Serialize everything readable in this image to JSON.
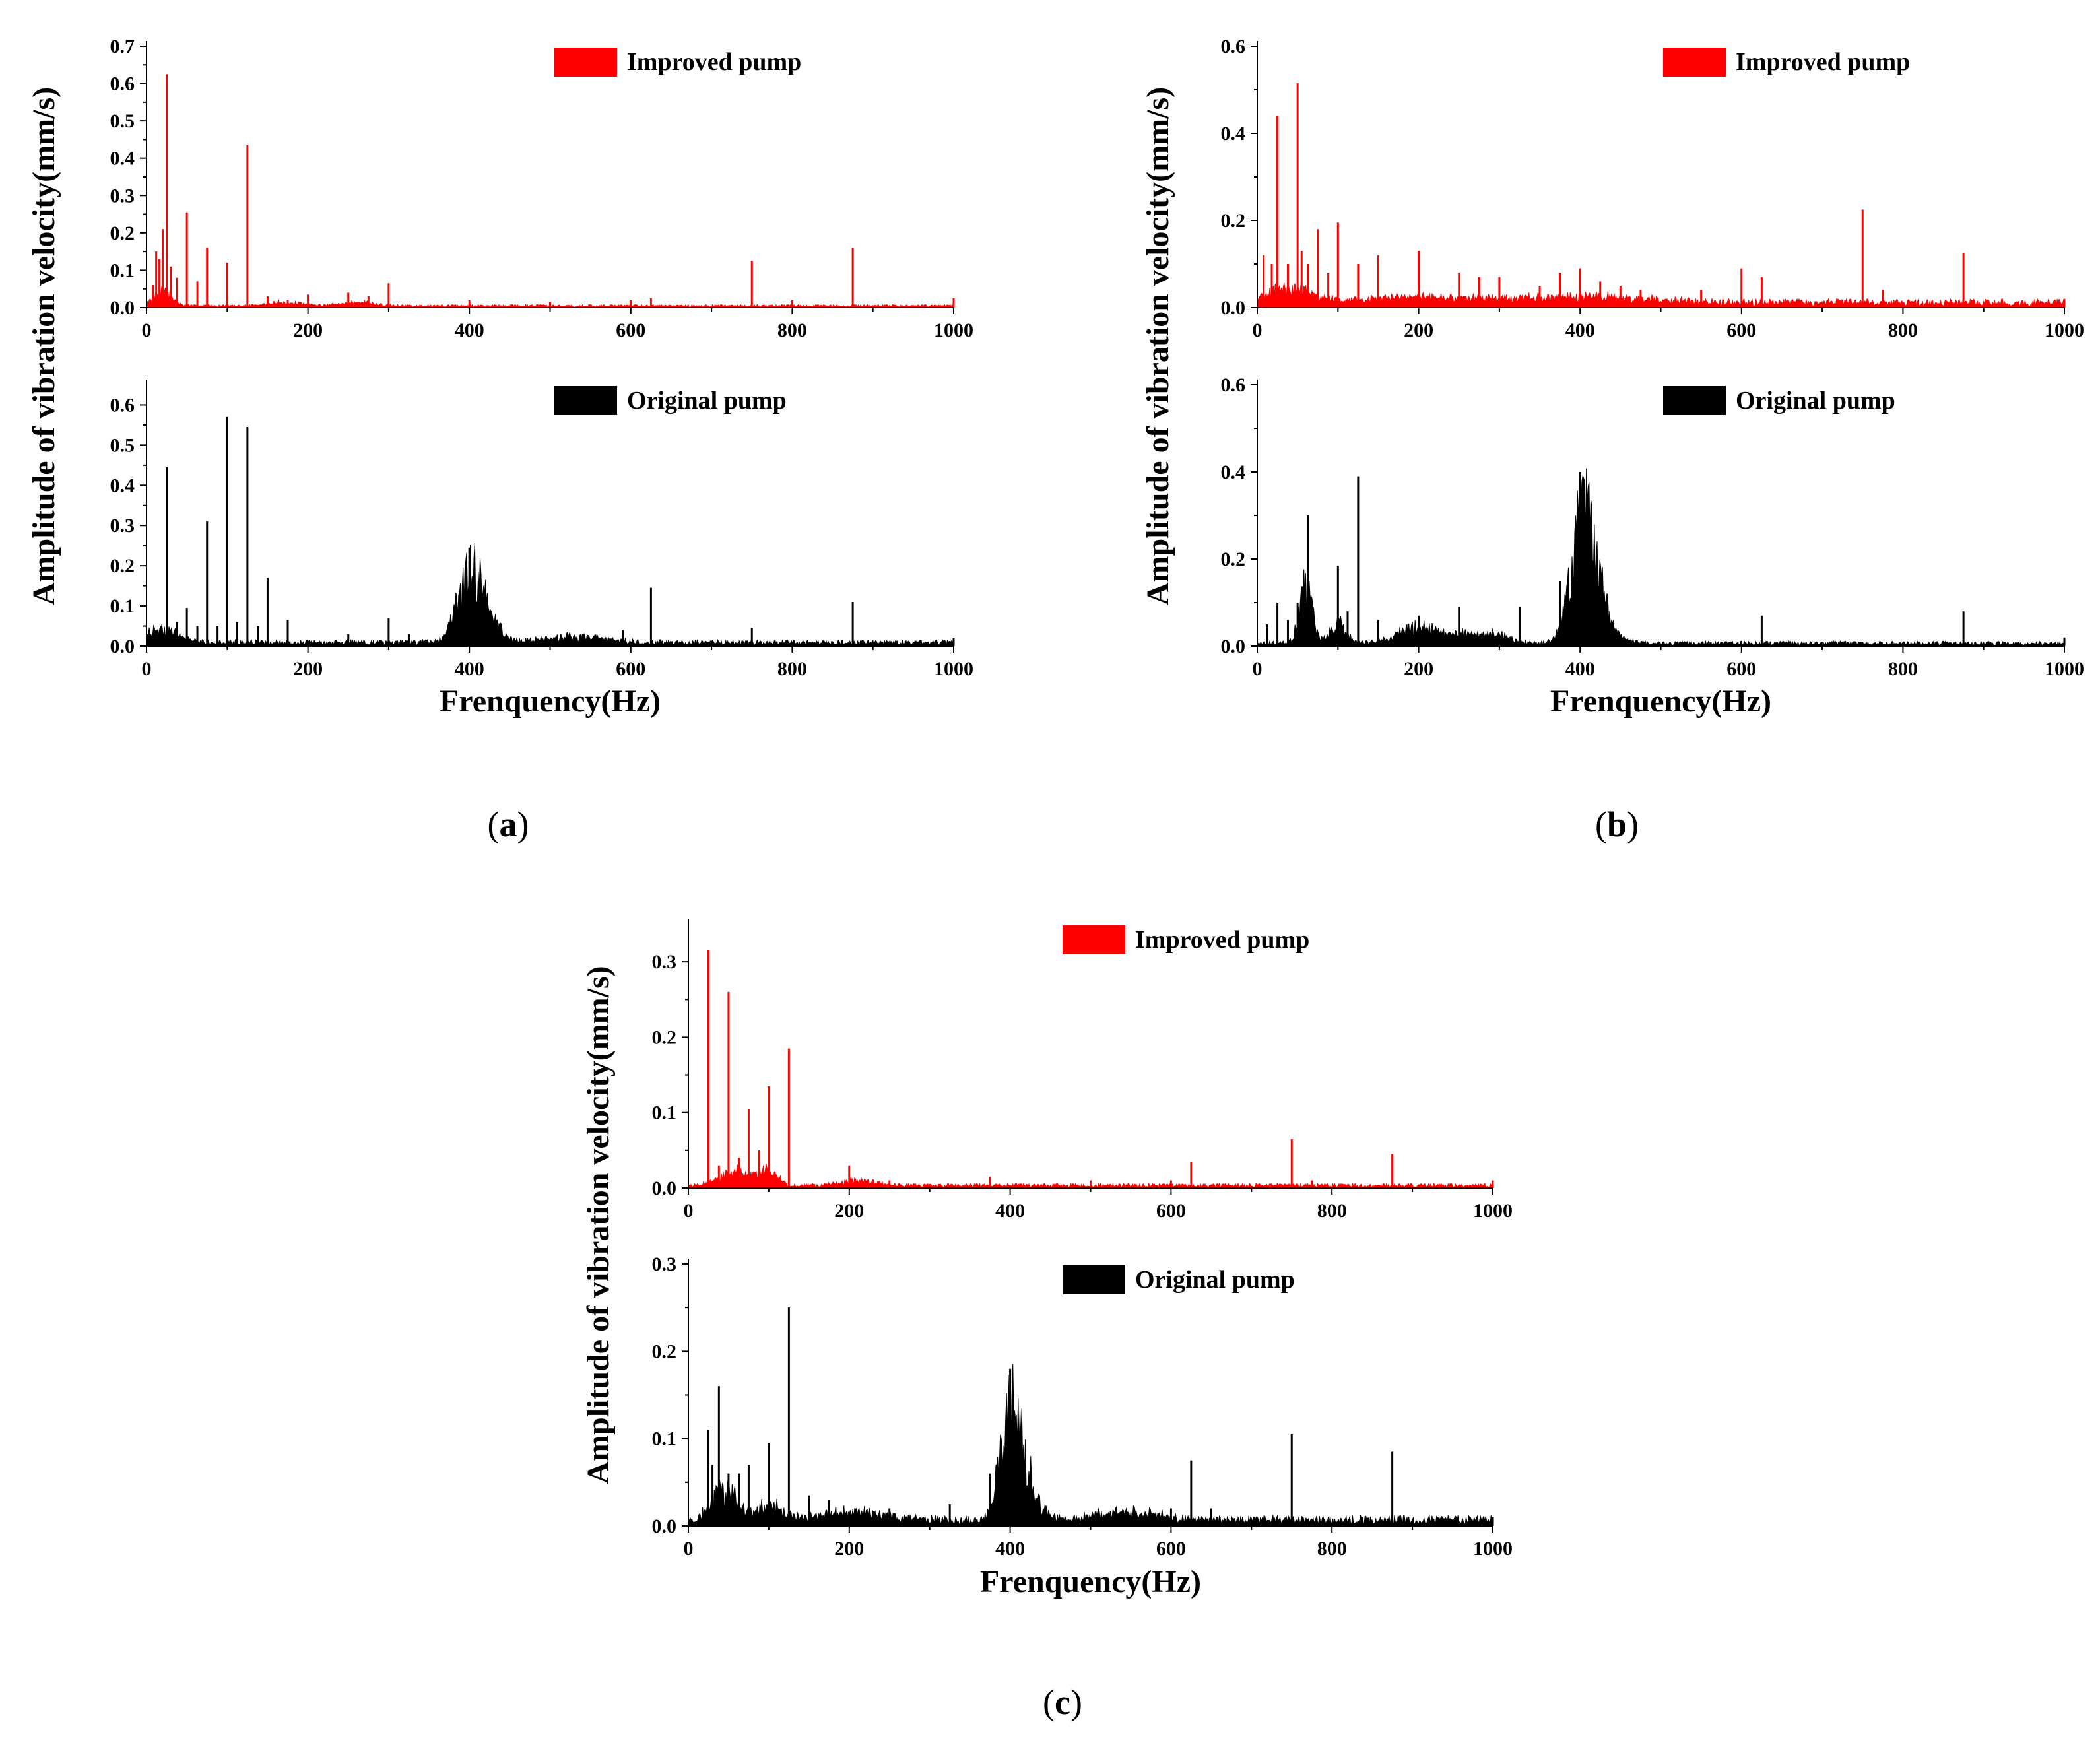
{
  "chart_data": [
    {
      "id": "a",
      "type": "line",
      "title": "",
      "caption": "(a)",
      "xlabel": "Frenquency(Hz)",
      "ylabel": "Amplitude of vibration velocity(mm/s)",
      "xlim": [
        0,
        1000
      ],
      "xticks": [
        0,
        200,
        400,
        600,
        800,
        1000
      ],
      "series": [
        {
          "name": "Improved pump",
          "color": "#ff0000",
          "ylim": [
            0,
            0.7
          ],
          "yticks": [
            0.0,
            0.1,
            0.2,
            0.3,
            0.4,
            0.5,
            0.6,
            0.7
          ],
          "noise_floor": 0.004,
          "humps": [
            [
              20,
              12,
              0.04
            ],
            [
              170,
              20,
              0.01
            ],
            [
              260,
              20,
              0.01
            ]
          ],
          "peaks": [
            [
              8,
              0.06
            ],
            [
              12,
              0.15
            ],
            [
              16,
              0.13
            ],
            [
              20,
              0.21
            ],
            [
              25,
              0.625
            ],
            [
              30,
              0.11
            ],
            [
              38,
              0.08
            ],
            [
              50,
              0.255
            ],
            [
              63,
              0.07
            ],
            [
              75,
              0.16
            ],
            [
              100,
              0.12
            ],
            [
              125,
              0.435
            ],
            [
              150,
              0.03
            ],
            [
              175,
              0.02
            ],
            [
              200,
              0.035
            ],
            [
              250,
              0.04
            ],
            [
              275,
              0.03
            ],
            [
              300,
              0.065
            ],
            [
              400,
              0.02
            ],
            [
              500,
              0.015
            ],
            [
              600,
              0.02
            ],
            [
              625,
              0.025
            ],
            [
              750,
              0.125
            ],
            [
              800,
              0.02
            ],
            [
              875,
              0.16
            ],
            [
              1000,
              0.025
            ]
          ]
        },
        {
          "name": "Original pump",
          "color": "#000000",
          "ylim": [
            0,
            0.65
          ],
          "yticks": [
            0.0,
            0.1,
            0.2,
            0.3,
            0.4,
            0.5,
            0.6
          ],
          "noise_floor": 0.008,
          "humps": [
            [
              20,
              20,
              0.035
            ],
            [
              400,
              15,
              0.18
            ],
            [
              425,
              15,
              0.05
            ],
            [
              530,
              40,
              0.015
            ]
          ],
          "peaks": [
            [
              12,
              0.04
            ],
            [
              18,
              0.05
            ],
            [
              25,
              0.445
            ],
            [
              38,
              0.06
            ],
            [
              50,
              0.095
            ],
            [
              63,
              0.05
            ],
            [
              75,
              0.31
            ],
            [
              88,
              0.05
            ],
            [
              100,
              0.57
            ],
            [
              112,
              0.06
            ],
            [
              125,
              0.545
            ],
            [
              138,
              0.05
            ],
            [
              150,
              0.17
            ],
            [
              175,
              0.065
            ],
            [
              250,
              0.03
            ],
            [
              300,
              0.07
            ],
            [
              325,
              0.03
            ],
            [
              375,
              0.06
            ],
            [
              400,
              0.245
            ],
            [
              590,
              0.04
            ],
            [
              625,
              0.145
            ],
            [
              750,
              0.045
            ],
            [
              875,
              0.11
            ],
            [
              1000,
              0.02
            ]
          ]
        }
      ]
    },
    {
      "id": "b",
      "type": "line",
      "title": "",
      "caption": "(b)",
      "xlabel": "Frenquency(Hz)",
      "ylabel": "Amplitude of vibration velocity(mm/s)",
      "xlim": [
        0,
        1000
      ],
      "xticks": [
        0,
        200,
        400,
        600,
        800,
        1000
      ],
      "series": [
        {
          "name": "Improved pump",
          "color": "#ff0000",
          "ylim": [
            0,
            0.6
          ],
          "yticks": [
            0.0,
            0.2,
            0.4,
            0.6
          ],
          "noise_floor": 0.01,
          "humps": [
            [
              40,
              30,
              0.035
            ],
            [
              200,
              60,
              0.012
            ],
            [
              400,
              80,
              0.015
            ]
          ],
          "peaks": [
            [
              8,
              0.12
            ],
            [
              18,
              0.1
            ],
            [
              25,
              0.44
            ],
            [
              38,
              0.1
            ],
            [
              50,
              0.515
            ],
            [
              55,
              0.13
            ],
            [
              63,
              0.1
            ],
            [
              75,
              0.18
            ],
            [
              88,
              0.08
            ],
            [
              100,
              0.195
            ],
            [
              125,
              0.1
            ],
            [
              150,
              0.12
            ],
            [
              200,
              0.13
            ],
            [
              250,
              0.08
            ],
            [
              275,
              0.07
            ],
            [
              300,
              0.07
            ],
            [
              350,
              0.05
            ],
            [
              375,
              0.08
            ],
            [
              400,
              0.09
            ],
            [
              425,
              0.06
            ],
            [
              450,
              0.05
            ],
            [
              475,
              0.04
            ],
            [
              550,
              0.04
            ],
            [
              600,
              0.09
            ],
            [
              625,
              0.07
            ],
            [
              750,
              0.225
            ],
            [
              775,
              0.04
            ],
            [
              875,
              0.125
            ],
            [
              1000,
              0.02
            ]
          ]
        },
        {
          "name": "Original pump",
          "color": "#000000",
          "ylim": [
            0,
            0.6
          ],
          "yticks": [
            0.0,
            0.2,
            0.4,
            0.6
          ],
          "noise_floor": 0.006,
          "humps": [
            [
              60,
              8,
              0.13
            ],
            [
              100,
              10,
              0.05
            ],
            [
              200,
              25,
              0.04
            ],
            [
              260,
              20,
              0.02
            ],
            [
              300,
              15,
              0.02
            ],
            [
              405,
              15,
              0.28
            ],
            [
              420,
              20,
              0.06
            ]
          ],
          "peaks": [
            [
              12,
              0.05
            ],
            [
              25,
              0.1
            ],
            [
              38,
              0.06
            ],
            [
              50,
              0.1
            ],
            [
              63,
              0.3
            ],
            [
              100,
              0.185
            ],
            [
              112,
              0.08
            ],
            [
              125,
              0.39
            ],
            [
              150,
              0.06
            ],
            [
              200,
              0.07
            ],
            [
              250,
              0.09
            ],
            [
              325,
              0.09
            ],
            [
              375,
              0.15
            ],
            [
              400,
              0.4
            ],
            [
              625,
              0.07
            ],
            [
              875,
              0.08
            ],
            [
              1000,
              0.02
            ]
          ]
        }
      ]
    },
    {
      "id": "c",
      "type": "line",
      "title": "",
      "caption": "(c)",
      "xlabel": "Frenquency(Hz)",
      "ylabel": "Amplitude of vibration velocity(mm/s)",
      "xlim": [
        0,
        1000
      ],
      "xticks": [
        0,
        200,
        400,
        600,
        800,
        1000
      ],
      "series": [
        {
          "name": "Improved pump",
          "color": "#ff0000",
          "ylim": [
            0,
            0.35
          ],
          "yticks": [
            0.0,
            0.1,
            0.2,
            0.3
          ],
          "noise_floor": 0.003,
          "humps": [
            [
              60,
              20,
              0.02
            ],
            [
              100,
              10,
              0.02
            ],
            [
              210,
              20,
              0.008
            ]
          ],
          "peaks": [
            [
              25,
              0.315
            ],
            [
              38,
              0.03
            ],
            [
              50,
              0.26
            ],
            [
              63,
              0.04
            ],
            [
              75,
              0.105
            ],
            [
              88,
              0.05
            ],
            [
              100,
              0.135
            ],
            [
              125,
              0.185
            ],
            [
              200,
              0.03
            ],
            [
              250,
              0.01
            ],
            [
              375,
              0.015
            ],
            [
              500,
              0.01
            ],
            [
              600,
              0.01
            ],
            [
              625,
              0.035
            ],
            [
              750,
              0.065
            ],
            [
              775,
              0.01
            ],
            [
              875,
              0.045
            ],
            [
              1000,
              0.01
            ]
          ]
        },
        {
          "name": "Original pump",
          "color": "#000000",
          "ylim": [
            0,
            0.3
          ],
          "yticks": [
            0.0,
            0.1,
            0.2,
            0.3
          ],
          "noise_floor": 0.006,
          "humps": [
            [
              45,
              15,
              0.04
            ],
            [
              100,
              15,
              0.02
            ],
            [
              200,
              40,
              0.01
            ],
            [
              400,
              12,
              0.14
            ],
            [
              420,
              15,
              0.04
            ],
            [
              550,
              40,
              0.01
            ]
          ],
          "peaks": [
            [
              25,
              0.11
            ],
            [
              30,
              0.07
            ],
            [
              38,
              0.16
            ],
            [
              50,
              0.06
            ],
            [
              63,
              0.06
            ],
            [
              75,
              0.07
            ],
            [
              100,
              0.095
            ],
            [
              125,
              0.25
            ],
            [
              150,
              0.035
            ],
            [
              175,
              0.03
            ],
            [
              250,
              0.02
            ],
            [
              325,
              0.025
            ],
            [
              375,
              0.06
            ],
            [
              400,
              0.18
            ],
            [
              600,
              0.02
            ],
            [
              625,
              0.075
            ],
            [
              650,
              0.02
            ],
            [
              750,
              0.105
            ],
            [
              875,
              0.085
            ],
            [
              1000,
              0.01
            ]
          ]
        }
      ]
    }
  ]
}
